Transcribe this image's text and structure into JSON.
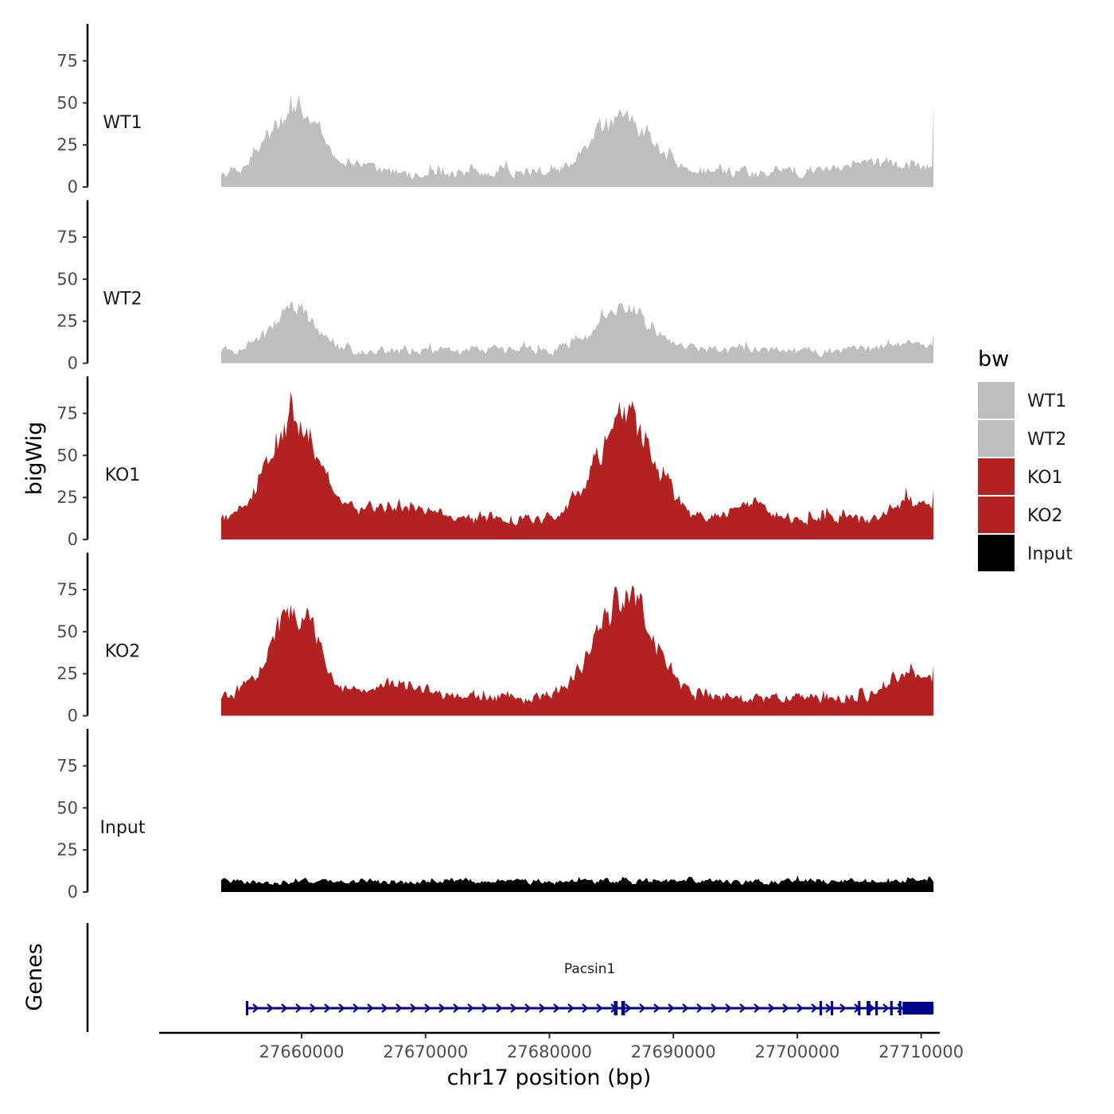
{
  "chart_data": {
    "type": "area",
    "title": "",
    "ylabel": "bigWig",
    "xlabel": "chr17 position (bp)",
    "xlim": [
      27648500,
      27711500
    ],
    "data_range": [
      27653500,
      27711000
    ],
    "ylim": [
      0,
      97
    ],
    "yticks": [
      0,
      25,
      50,
      75
    ],
    "xticks": [
      27660000,
      27670000,
      27680000,
      27690000,
      27700000,
      27710000
    ],
    "xtick_labels": [
      "27660000",
      "27670000",
      "27680000",
      "27690000",
      "27700000",
      "27710000"
    ],
    "grid": false,
    "legend": {
      "title": "bw",
      "position": "right",
      "entries": [
        {
          "label": "WT1",
          "color": "#bebebe"
        },
        {
          "label": "WT2",
          "color": "#bebebe"
        },
        {
          "label": "KO1",
          "color": "#b22222"
        },
        {
          "label": "KO2",
          "color": "#b22222"
        },
        {
          "label": "Input",
          "color": "#000000"
        }
      ]
    },
    "series": [
      {
        "name": "WT1",
        "color": "#bebebe",
        "baseline": 3,
        "noise": 13,
        "end_value": 50,
        "peaks": [
          {
            "center": 27659200,
            "width": 1900,
            "height": 40
          },
          {
            "center": 27664500,
            "width": 900,
            "height": 5
          },
          {
            "center": 27685800,
            "width": 2300,
            "height": 33
          },
          {
            "center": 27706000,
            "width": 3000,
            "height": 6
          }
        ]
      },
      {
        "name": "WT2",
        "color": "#bebebe",
        "baseline": 3,
        "noise": 11,
        "end_value": 18,
        "peaks": [
          {
            "center": 27659300,
            "width": 1700,
            "height": 26
          },
          {
            "center": 27685800,
            "width": 2300,
            "height": 24
          },
          {
            "center": 27709000,
            "width": 1500,
            "height": 6
          }
        ]
      },
      {
        "name": "KO1",
        "color": "#b22222",
        "baseline": 7,
        "noise": 12,
        "end_value": 30,
        "peaks": [
          {
            "center": 27659300,
            "width": 2000,
            "height": 60
          },
          {
            "center": 27686000,
            "width": 2300,
            "height": 60
          },
          {
            "center": 27668000,
            "width": 2500,
            "height": 8
          },
          {
            "center": 27696000,
            "width": 1500,
            "height": 10
          },
          {
            "center": 27709000,
            "width": 1500,
            "height": 10
          }
        ]
      },
      {
        "name": "KO2",
        "color": "#b22222",
        "baseline": 6,
        "noise": 12,
        "end_value": 30,
        "peaks": [
          {
            "center": 27659300,
            "width": 1900,
            "height": 55
          },
          {
            "center": 27686000,
            "width": 2300,
            "height": 58
          },
          {
            "center": 27668000,
            "width": 2200,
            "height": 8
          },
          {
            "center": 27709000,
            "width": 1500,
            "height": 14
          }
        ]
      },
      {
        "name": "Input",
        "color": "#000000",
        "baseline": 4,
        "noise": 6,
        "end_value": 6,
        "peaks": []
      }
    ],
    "genes_track": {
      "label": "Genes",
      "genes": [
        {
          "name": "Pacsin1",
          "start": 27655500,
          "end": 27711000,
          "strand": "+",
          "color": "#00008b",
          "exons": [
            [
              27655500,
              27655700
            ],
            [
              27685200,
              27685500
            ],
            [
              27685800,
              27686100
            ],
            [
              27701800,
              27702000
            ],
            [
              27702700,
              27702900
            ],
            [
              27704900,
              27705100
            ],
            [
              27705600,
              27705900
            ],
            [
              27706300,
              27706500
            ],
            [
              27707500,
              27707700
            ],
            [
              27708200,
              27708400
            ],
            [
              27708500,
              27711000
            ]
          ]
        }
      ]
    }
  }
}
